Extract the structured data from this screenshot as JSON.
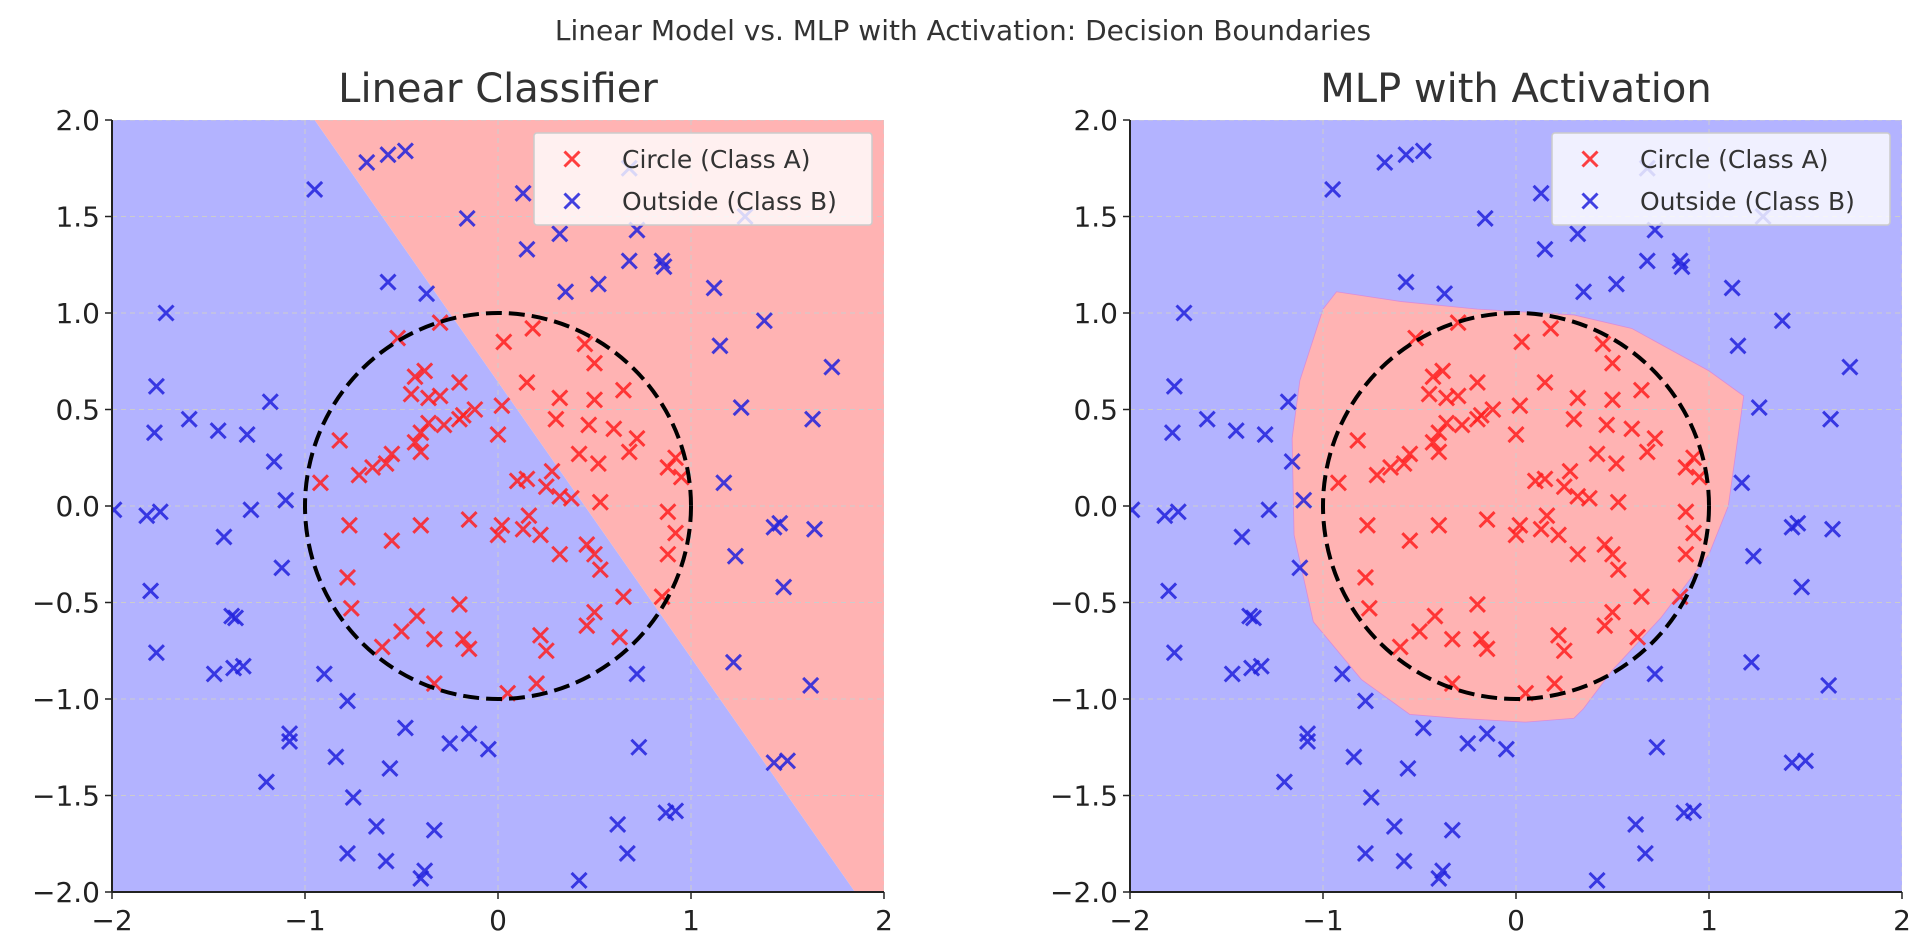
{
  "figure": {
    "suptitle": "Linear Model vs. MLP with Activation: Decision Boundaries"
  },
  "colors": {
    "class_a_region": "#ffb3b3",
    "class_b_region": "#b3b3ff",
    "class_a_marker": "#ff2020",
    "class_b_marker": "#2222dd",
    "circle": "#000000",
    "grid": "#cccccc"
  },
  "chart_data": [
    {
      "type": "scatter",
      "title": "Linear Classifier",
      "xlabel": "",
      "ylabel": "",
      "xlim": [
        -2,
        2
      ],
      "ylim": [
        -2,
        2
      ],
      "xticks": [
        -2,
        -1,
        0,
        1,
        2
      ],
      "yticks": [
        -2.0,
        -1.5,
        -1.0,
        -0.5,
        0.0,
        0.5,
        1.0,
        1.5,
        2.0
      ],
      "grid": true,
      "legend": {
        "placement": "top-right",
        "entries": [
          "Circle (Class A)",
          "Outside (Class B)"
        ]
      },
      "reference_circle": {
        "center": [
          0,
          0
        ],
        "radius": 1,
        "style": "dashed"
      },
      "decision_regions": {
        "class_a": [
          [
            -0.95,
            2.0
          ],
          [
            2.0,
            2.0
          ],
          [
            2.0,
            -2.0
          ],
          [
            1.85,
            -2.0
          ]
        ],
        "class_b": [
          [
            -2.0,
            2.0
          ],
          [
            -0.95,
            2.0
          ],
          [
            1.85,
            -2.0
          ],
          [
            -2.0,
            -2.0
          ]
        ]
      }
    },
    {
      "type": "scatter",
      "title": "MLP with Activation",
      "xlabel": "",
      "ylabel": "",
      "xlim": [
        -2,
        2
      ],
      "ylim": [
        -2,
        2
      ],
      "xticks": [
        -2,
        -1,
        0,
        1,
        2
      ],
      "yticks": [
        -2.0,
        -1.5,
        -1.0,
        -0.5,
        0.0,
        0.5,
        1.0,
        1.5,
        2.0
      ],
      "grid": true,
      "legend": {
        "placement": "top-right",
        "entries": [
          "Circle (Class A)",
          "Outside (Class B)"
        ]
      },
      "reference_circle": {
        "center": [
          0,
          0
        ],
        "radius": 1,
        "style": "dashed"
      },
      "decision_regions": {
        "class_b": [
          [
            -2.0,
            -2.0
          ],
          [
            2.0,
            -2.0
          ],
          [
            2.0,
            2.0
          ],
          [
            -2.0,
            2.0
          ]
        ],
        "class_a": [
          [
            -1.0,
            1.02
          ],
          [
            -0.93,
            1.11
          ],
          [
            -0.6,
            1.06
          ],
          [
            -0.2,
            1.02
          ],
          [
            0.3,
            0.99
          ],
          [
            0.6,
            0.92
          ],
          [
            1.0,
            0.7
          ],
          [
            1.18,
            0.57
          ],
          [
            1.1,
            0.0
          ],
          [
            1.0,
            -0.25
          ],
          [
            0.75,
            -0.58
          ],
          [
            0.5,
            -0.85
          ],
          [
            0.35,
            -1.05
          ],
          [
            0.3,
            -1.1
          ],
          [
            0.05,
            -1.12
          ],
          [
            -0.3,
            -1.1
          ],
          [
            -0.55,
            -1.08
          ],
          [
            -0.8,
            -0.9
          ],
          [
            -1.05,
            -0.6
          ],
          [
            -1.15,
            -0.15
          ],
          [
            -1.16,
            0.35
          ],
          [
            -1.12,
            0.65
          ]
        ]
      }
    }
  ],
  "points": {
    "class_a": [
      [
        -0.3,
        0.95
      ],
      [
        0.03,
        0.85
      ],
      [
        0.18,
        0.92
      ],
      [
        0.45,
        0.84
      ],
      [
        -0.52,
        0.87
      ],
      [
        -0.38,
        0.7
      ],
      [
        -0.43,
        0.67
      ],
      [
        -0.45,
        0.58
      ],
      [
        -0.36,
        0.56
      ],
      [
        -0.3,
        0.57
      ],
      [
        -0.2,
        0.64
      ],
      [
        -0.12,
        0.5
      ],
      [
        -0.2,
        0.45
      ],
      [
        -0.28,
        0.42
      ],
      [
        -0.36,
        0.43
      ],
      [
        -0.43,
        0.33
      ],
      [
        -0.4,
        0.38
      ],
      [
        -0.55,
        0.27
      ],
      [
        -0.58,
        0.22
      ],
      [
        -0.65,
        0.2
      ],
      [
        -0.72,
        0.16
      ],
      [
        -0.92,
        0.12
      ],
      [
        -0.82,
        0.34
      ],
      [
        -0.18,
        0.47
      ],
      [
        0.02,
        0.52
      ],
      [
        0.0,
        0.37
      ],
      [
        0.15,
        0.64
      ],
      [
        0.5,
        0.74
      ],
      [
        0.65,
        0.6
      ],
      [
        0.5,
        0.55
      ],
      [
        0.32,
        0.56
      ],
      [
        0.3,
        0.45
      ],
      [
        0.47,
        0.42
      ],
      [
        0.6,
        0.4
      ],
      [
        0.72,
        0.35
      ],
      [
        0.68,
        0.28
      ],
      [
        0.42,
        0.27
      ],
      [
        0.52,
        0.22
      ],
      [
        0.28,
        0.18
      ],
      [
        0.15,
        0.14
      ],
      [
        0.1,
        0.13
      ],
      [
        0.25,
        0.1
      ],
      [
        0.32,
        0.05
      ],
      [
        0.38,
        0.04
      ],
      [
        0.53,
        0.02
      ],
      [
        0.88,
        0.2
      ],
      [
        0.92,
        0.25
      ],
      [
        0.95,
        0.15
      ],
      [
        0.88,
        -0.03
      ],
      [
        0.92,
        -0.14
      ],
      [
        0.88,
        -0.25
      ],
      [
        0.85,
        -0.47
      ],
      [
        0.65,
        -0.47
      ],
      [
        0.5,
        -0.55
      ],
      [
        0.46,
        -0.62
      ],
      [
        0.63,
        -0.68
      ],
      [
        0.53,
        -0.33
      ],
      [
        0.5,
        -0.25
      ],
      [
        0.46,
        -0.2
      ],
      [
        0.32,
        -0.25
      ],
      [
        0.22,
        -0.15
      ],
      [
        0.13,
        -0.12
      ],
      [
        0.16,
        -0.05
      ],
      [
        0.02,
        -0.1
      ],
      [
        0.0,
        -0.15
      ],
      [
        -0.15,
        -0.07
      ],
      [
        -0.4,
        -0.1
      ],
      [
        -0.55,
        -0.18
      ],
      [
        -0.77,
        -0.1
      ],
      [
        -0.78,
        -0.37
      ],
      [
        -0.76,
        -0.53
      ],
      [
        -0.42,
        -0.57
      ],
      [
        -0.5,
        -0.65
      ],
      [
        -0.6,
        -0.73
      ],
      [
        -0.33,
        -0.69
      ],
      [
        -0.18,
        -0.69
      ],
      [
        -0.15,
        -0.74
      ],
      [
        -0.2,
        -0.51
      ],
      [
        0.22,
        -0.67
      ],
      [
        0.25,
        -0.75
      ],
      [
        0.2,
        -0.92
      ],
      [
        0.05,
        -0.97
      ],
      [
        -0.33,
        -0.92
      ],
      [
        -0.4,
        0.28
      ]
    ],
    "class_b": [
      [
        -0.95,
        1.64
      ],
      [
        -0.68,
        1.78
      ],
      [
        -0.57,
        1.82
      ],
      [
        -0.48,
        1.84
      ],
      [
        -0.16,
        1.49
      ],
      [
        0.15,
        1.33
      ],
      [
        0.32,
        1.41
      ],
      [
        0.68,
        1.27
      ],
      [
        0.72,
        1.43
      ],
      [
        0.85,
        1.27
      ],
      [
        0.86,
        1.24
      ],
      [
        0.52,
        1.15
      ],
      [
        0.35,
        1.11
      ],
      [
        1.12,
        1.13
      ],
      [
        1.15,
        0.83
      ],
      [
        1.38,
        0.96
      ],
      [
        1.26,
        0.51
      ],
      [
        1.63,
        0.45
      ],
      [
        1.73,
        0.72
      ],
      [
        1.17,
        0.12
      ],
      [
        1.43,
        -0.11
      ],
      [
        1.48,
        -0.42
      ],
      [
        1.64,
        -0.12
      ],
      [
        1.46,
        -0.09
      ],
      [
        1.23,
        -0.26
      ],
      [
        1.22,
        -0.81
      ],
      [
        1.62,
        -0.93
      ],
      [
        0.72,
        -0.87
      ],
      [
        0.73,
        -1.25
      ],
      [
        0.87,
        -1.59
      ],
      [
        0.92,
        -1.58
      ],
      [
        0.67,
        -1.8
      ],
      [
        0.62,
        -1.65
      ],
      [
        0.42,
        -1.94
      ],
      [
        1.43,
        -1.33
      ],
      [
        1.5,
        -1.32
      ],
      [
        -0.05,
        -1.26
      ],
      [
        -0.15,
        -1.18
      ],
      [
        -0.25,
        -1.23
      ],
      [
        -0.33,
        -1.68
      ],
      [
        -0.38,
        -1.89
      ],
      [
        -0.4,
        -1.93
      ],
      [
        -0.58,
        -1.84
      ],
      [
        -0.63,
        -1.66
      ],
      [
        -0.56,
        -1.36
      ],
      [
        -0.48,
        -1.15
      ],
      [
        -0.78,
        -1.01
      ],
      [
        -0.75,
        -1.51
      ],
      [
        -0.84,
        -1.3
      ],
      [
        -0.78,
        -1.8
      ],
      [
        -0.9,
        -0.87
      ],
      [
        -1.08,
        -1.18
      ],
      [
        -1.08,
        -1.22
      ],
      [
        -1.2,
        -1.43
      ],
      [
        -1.32,
        -0.83
      ],
      [
        -1.37,
        -0.84
      ],
      [
        -1.38,
        -0.57
      ],
      [
        -1.36,
        -0.58
      ],
      [
        -1.47,
        -0.87
      ],
      [
        -1.12,
        -0.32
      ],
      [
        -1.1,
        0.03
      ],
      [
        -1.28,
        -0.02
      ],
      [
        -1.42,
        -0.16
      ],
      [
        -1.16,
        0.23
      ],
      [
        -1.6,
        0.45
      ],
      [
        -1.45,
        0.39
      ],
      [
        -1.3,
        0.37
      ],
      [
        -1.78,
        0.38
      ],
      [
        -1.77,
        0.62
      ],
      [
        -1.72,
        1.0
      ],
      [
        -1.8,
        -0.44
      ],
      [
        -1.77,
        -0.76
      ],
      [
        -1.75,
        -0.03
      ],
      [
        -1.82,
        -0.05
      ],
      [
        -1.99,
        -0.02
      ],
      [
        -0.57,
        1.16
      ],
      [
        -0.37,
        1.1
      ],
      [
        0.13,
        1.62
      ],
      [
        0.68,
        1.75
      ],
      [
        1.28,
        1.5
      ],
      [
        -1.18,
        0.54
      ]
    ]
  }
}
